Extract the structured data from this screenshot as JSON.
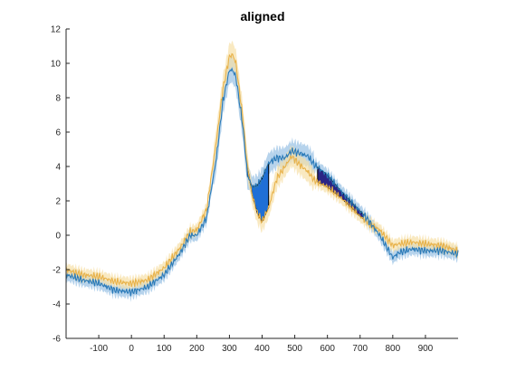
{
  "chart_data": {
    "type": "line",
    "title": "aligned",
    "xlabel": "",
    "ylabel": "",
    "xlim": [
      -200,
      1000
    ],
    "ylim": [
      -6,
      12
    ],
    "x_ticks": [
      -100,
      0,
      100,
      200,
      300,
      400,
      500,
      600,
      700,
      800,
      900
    ],
    "y_ticks": [
      -6,
      -4,
      -2,
      0,
      2,
      4,
      6,
      8,
      10,
      12
    ],
    "grid": false,
    "legend": "none",
    "colors": {
      "series_a_line": "#e8b24a",
      "series_a_band": "#f7dfa6",
      "series_b_line": "#2a7ab8",
      "series_b_band": "#a9cbe9",
      "shade_1": "#1f6fd6",
      "shade_2": "#2b2585"
    },
    "series": [
      {
        "x": [
          -200,
          -150,
          -100,
          -50,
          0,
          50,
          100,
          150,
          180,
          200,
          230,
          260,
          280,
          300,
          310,
          320,
          340,
          355,
          370,
          385,
          400,
          420,
          445,
          470,
          490,
          510,
          540,
          560,
          600,
          640,
          680,
          700,
          720,
          760,
          800,
          820,
          860,
          900,
          950,
          1000
        ],
        "y": [
          -2.0,
          -2.3,
          -2.4,
          -2.7,
          -2.8,
          -2.6,
          -1.9,
          -0.7,
          0.2,
          0.3,
          1.5,
          5.5,
          8.5,
          10.4,
          10.5,
          10.0,
          7.0,
          4.0,
          2.3,
          1.3,
          0.8,
          1.6,
          3.3,
          4.0,
          4.6,
          4.2,
          3.7,
          3.2,
          2.8,
          2.2,
          1.5,
          1.1,
          0.8,
          0.3,
          -0.6,
          -0.5,
          -0.4,
          -0.5,
          -0.6,
          -0.9
        ]
      },
      {
        "x": [
          -200,
          -150,
          -100,
          -50,
          0,
          50,
          100,
          150,
          180,
          200,
          230,
          260,
          280,
          300,
          310,
          320,
          340,
          355,
          370,
          385,
          400,
          420,
          445,
          470,
          490,
          510,
          540,
          560,
          600,
          640,
          680,
          700,
          720,
          760,
          800,
          820,
          860,
          900,
          950,
          1000
        ],
        "y": [
          -2.3,
          -2.6,
          -2.8,
          -3.2,
          -3.3,
          -3.0,
          -2.3,
          -1.0,
          0.0,
          0.0,
          1.0,
          4.5,
          7.8,
          9.6,
          9.6,
          9.2,
          6.5,
          3.5,
          2.8,
          2.9,
          3.3,
          4.2,
          4.5,
          4.5,
          4.9,
          4.8,
          4.6,
          4.1,
          3.5,
          2.6,
          1.8,
          1.4,
          1.0,
          0.0,
          -1.3,
          -1.0,
          -0.8,
          -0.9,
          -0.9,
          -1.1
        ]
      }
    ],
    "shaded_regions": [
      {
        "x_range": [
          355,
          420
        ]
      },
      {
        "x_range": [
          570,
          710
        ]
      }
    ]
  }
}
